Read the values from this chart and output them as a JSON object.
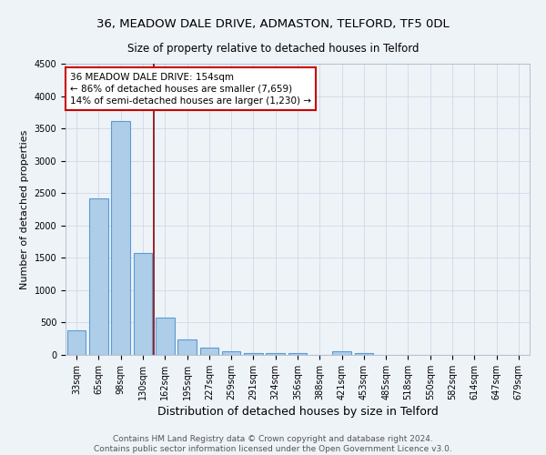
{
  "title1": "36, MEADOW DALE DRIVE, ADMASTON, TELFORD, TF5 0DL",
  "title2": "Size of property relative to detached houses in Telford",
  "xlabel": "Distribution of detached houses by size in Telford",
  "ylabel": "Number of detached properties",
  "categories": [
    "33sqm",
    "65sqm",
    "98sqm",
    "130sqm",
    "162sqm",
    "195sqm",
    "227sqm",
    "259sqm",
    "291sqm",
    "324sqm",
    "356sqm",
    "388sqm",
    "421sqm",
    "453sqm",
    "485sqm",
    "518sqm",
    "550sqm",
    "582sqm",
    "614sqm",
    "647sqm",
    "679sqm"
  ],
  "values": [
    375,
    2420,
    3620,
    1580,
    580,
    240,
    110,
    60,
    35,
    25,
    35,
    0,
    55,
    30,
    0,
    0,
    0,
    0,
    0,
    0,
    0
  ],
  "bar_color": "#aecde8",
  "bar_edge_color": "#5b9bd5",
  "grid_color": "#d0d8e8",
  "bg_color": "#eef3f8",
  "vline_color": "#8b0000",
  "vline_pos": 3.5,
  "annotation_line1": "36 MEADOW DALE DRIVE: 154sqm",
  "annotation_line2": "← 86% of detached houses are smaller (7,659)",
  "annotation_line3": "14% of semi-detached houses are larger (1,230) →",
  "annotation_box_color": "#ffffff",
  "annotation_box_edgecolor": "#cc0000",
  "footer": "Contains HM Land Registry data © Crown copyright and database right 2024.\nContains public sector information licensed under the Open Government Licence v3.0.",
  "ylim": [
    0,
    4500
  ],
  "title1_fontsize": 9.5,
  "title2_fontsize": 8.5,
  "xlabel_fontsize": 9,
  "ylabel_fontsize": 8,
  "tick_fontsize": 7,
  "footer_fontsize": 6.5,
  "annot_fontsize": 7.5
}
